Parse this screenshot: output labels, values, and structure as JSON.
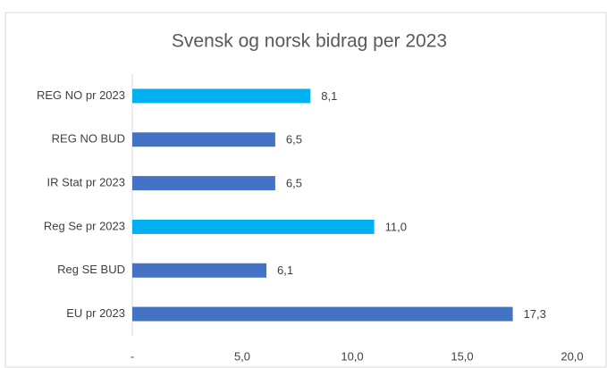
{
  "chart_data": {
    "type": "barh",
    "title": "Svensk og norsk bidrag per 2023",
    "categories": [
      "REG NO pr 2023",
      "REG NO BUD",
      "IR Stat pr 2023",
      "Reg Se pr 2023",
      "Reg SE BUD",
      "EU pr 2023"
    ],
    "values": [
      8.1,
      6.5,
      6.5,
      11.0,
      6.1,
      17.3
    ],
    "value_labels": [
      "8,1",
      "6,5",
      "6,5",
      "11,0",
      "6,1",
      "17,3"
    ],
    "colors": [
      "#00b0f0",
      "#4472c4",
      "#4472c4",
      "#00b0f0",
      "#4472c4",
      "#4472c4"
    ],
    "xlim": [
      0,
      20
    ],
    "xticks": [
      {
        "value": 0,
        "label": "-"
      },
      {
        "value": 5,
        "label": "5,0"
      },
      {
        "value": 10,
        "label": "10,0"
      },
      {
        "value": 15,
        "label": "15,0"
      },
      {
        "value": 20,
        "label": "20,0"
      }
    ],
    "grid": false
  }
}
